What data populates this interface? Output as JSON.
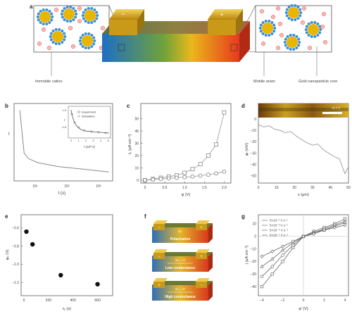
{
  "figure": {
    "panel_a": {
      "label": "a",
      "legend": {
        "immobile_cation": "Immobile cation",
        "mobile_anion": "Mobile anion",
        "gold_core": "Gold nanoparticle core"
      },
      "electrode_left_sign": "−",
      "electrode_right_sign": "+"
    },
    "panel_b": {
      "label": "b",
      "ylabel": "I",
      "xlabel": "t (s)",
      "xticks": [
        "10¹",
        "10²",
        "10³"
      ],
      "inset": {
        "ylabel": "I",
        "xlabel": "t (10³ s)",
        "yticks": [
          "1.0",
          "0.5"
        ],
        "xticks": [
          "0",
          "1",
          "2",
          "3",
          "4",
          "5"
        ],
        "legend": [
          "Experiment",
          "Simulation"
        ]
      }
    },
    "panel_c": {
      "label": "c",
      "ylabel": "I₂ (μA cm⁻²)",
      "xlabel": "φ (V)",
      "yticks": [
        "0",
        "10",
        "20",
        "30",
        "40",
        "50"
      ],
      "xticks": [
        "0",
        "0.5",
        "1.0",
        "1.5",
        "2.0"
      ]
    },
    "panel_d": {
      "label": "d",
      "ylabel": "φᵣ (mV)",
      "xlabel": "x (μm)",
      "yticks": [
        "0",
        "−10",
        "−20",
        "−30",
        "−40",
        "−50"
      ],
      "xticks": [
        "0",
        "10",
        "20",
        "30",
        "40",
        "50"
      ],
      "image_label": "−0.7 V"
    },
    "panel_e": {
      "label": "e",
      "ylabel": "φ₀ (V)",
      "xlabel": "tₚ (s)",
      "yticks": [
        "−0.6",
        "−0.8",
        "−1.0",
        "−1.2"
      ],
      "xticks": [
        "0",
        "200",
        "400",
        "600"
      ]
    },
    "panel_f": {
      "label": "f",
      "stages": [
        {
          "field": "Eₚ",
          "caption": "Polarization"
        },
        {
          "field": "Eₚ = 0",
          "caption": "Low conductance"
        },
        {
          "field": "Eₚ = 0",
          "caption": "High conductance"
        }
      ]
    },
    "panel_g": {
      "label": "g",
      "ylabel": "j (μA cm⁻²)",
      "xlabel": "φ′ (V)",
      "yticks": [
        "10",
        "0",
        "−10",
        "−20",
        "−30",
        "−40"
      ],
      "xticks": [
        "−4",
        "−2",
        "0",
        "2",
        "4"
      ],
      "legend": [
        "5×10⁻² V s⁻¹",
        "5×10⁻³ V s⁻¹",
        "5×10⁻⁴ V s⁻¹",
        "5×10⁻⁵ V s⁻¹"
      ]
    },
    "colors": {
      "gold": "#e8b500",
      "anion": "#e8423a",
      "cation": "#3a8fd8",
      "device_left": "#1e6fc4",
      "device_right": "#e8381e"
    }
  },
  "chart_data": [
    {
      "type": "line",
      "title": "",
      "xlabel": "t (s)",
      "ylabel": "I",
      "xscale": "log",
      "x": [
        5,
        7,
        10,
        20,
        50,
        100,
        300,
        1000,
        3000,
        5000
      ],
      "y": [
        1.0,
        0.45,
        0.38,
        0.33,
        0.3,
        0.28,
        0.26,
        0.24,
        0.22,
        0.21
      ]
    },
    {
      "type": "scatter",
      "xlabel": "φ (V)",
      "ylabel": "I₂ (μA cm⁻²)",
      "ylim": [
        0,
        60
      ],
      "xlim": [
        0,
        2.1
      ],
      "series": [
        {
          "x": [
            0,
            0.2,
            0.4,
            0.6,
            0.8,
            1.0,
            1.2,
            1.4,
            1.6,
            1.8,
            2.0
          ],
          "values": [
            0,
            1,
            2,
            3,
            4,
            6,
            9,
            13,
            20,
            29,
            55
          ]
        },
        {
          "x": [
            0,
            0.2,
            0.4,
            0.6,
            0.8,
            1.0,
            1.2,
            1.4,
            1.6,
            1.8,
            2.0
          ],
          "values": [
            0,
            0.5,
            1,
            1.5,
            2,
            2.5,
            3,
            3.7,
            4.5,
            5.5,
            7
          ]
        }
      ]
    },
    {
      "type": "line",
      "xlabel": "x (μm)",
      "ylabel": "φᵣ (mV)",
      "xlim": [
        0,
        50
      ],
      "ylim": [
        -55,
        0
      ],
      "x": [
        0,
        3,
        6,
        9,
        12,
        15,
        18,
        21,
        24,
        27,
        30,
        33,
        36,
        39,
        42,
        45,
        48,
        50
      ],
      "y": [
        -5,
        -7,
        -6,
        -9,
        -10,
        -12,
        -11,
        -15,
        -18,
        -21,
        -23,
        -22,
        -27,
        -30,
        -33,
        -35,
        -48,
        -42
      ]
    },
    {
      "type": "scatter",
      "xlabel": "tₚ (s)",
      "ylabel": "φ₀ (V)",
      "xlim": [
        0,
        700
      ],
      "ylim": [
        -1.3,
        -0.5
      ],
      "x": [
        20,
        70,
        300,
        600
      ],
      "y": [
        -0.64,
        -0.78,
        -1.12,
        -1.22
      ]
    },
    {
      "type": "line",
      "xlabel": "φ′ (V)",
      "ylabel": "j (μA cm⁻²)",
      "xlim": [
        -4,
        4
      ],
      "ylim": [
        -45,
        15
      ],
      "x": [
        -4,
        -3,
        -2,
        -1,
        0,
        1,
        2,
        3,
        4
      ],
      "series": [
        {
          "name": "5×10⁻² V s⁻¹",
          "values": [
            -40,
            -30,
            -20,
            -9,
            0,
            4,
            7,
            10,
            14
          ]
        },
        {
          "name": "5×10⁻³ V s⁻¹",
          "values": [
            -32,
            -24,
            -15,
            -7,
            0,
            3,
            6,
            9,
            12
          ]
        },
        {
          "name": "5×10⁻⁴ V s⁻¹",
          "values": [
            -24,
            -18,
            -11,
            -5,
            0,
            3,
            5,
            8,
            11
          ]
        },
        {
          "name": "5×10⁻⁵ V s⁻¹",
          "values": [
            -16,
            -12,
            -8,
            -4,
            0,
            2,
            5,
            7,
            9
          ]
        }
      ]
    }
  ]
}
